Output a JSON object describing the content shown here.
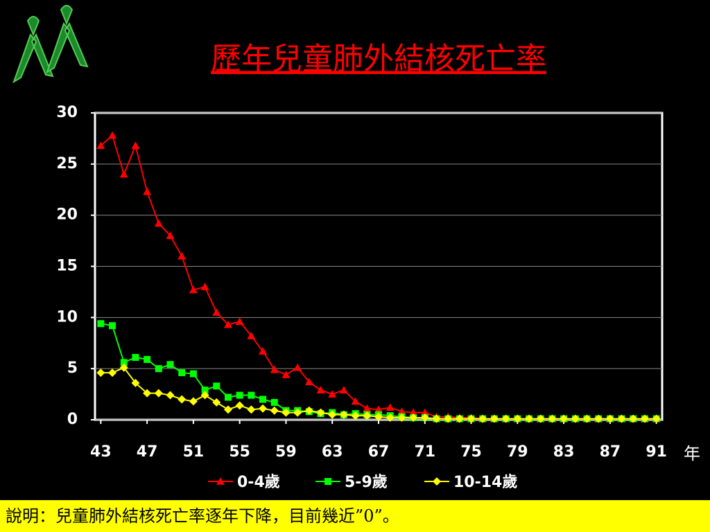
{
  "chart_data": {
    "type": "line",
    "title": "歷年兒童肺外結核死亡率",
    "x_label": "年",
    "note": "說明：兒童肺外結核死亡率逐年下降，目前幾近”0”。",
    "x": [
      43,
      44,
      45,
      46,
      47,
      48,
      49,
      50,
      51,
      52,
      53,
      54,
      55,
      56,
      57,
      58,
      59,
      60,
      61,
      62,
      63,
      64,
      65,
      66,
      67,
      68,
      69,
      70,
      71,
      72,
      73,
      74,
      75,
      76,
      77,
      78,
      79,
      80,
      81,
      82,
      83,
      84,
      85,
      86,
      87,
      88,
      89,
      90,
      91
    ],
    "xlim": [
      42.5,
      91.5
    ],
    "xticks": [
      43,
      47,
      51,
      55,
      59,
      63,
      67,
      71,
      75,
      79,
      83,
      87,
      91
    ],
    "ylim": [
      0,
      30
    ],
    "yticks": [
      0,
      5,
      10,
      15,
      20,
      25,
      30
    ],
    "grid": true,
    "series": [
      {
        "name": "0-4歲",
        "color": "#ff0000",
        "marker": "triangle",
        "values": [
          26.8,
          27.8,
          24,
          26.8,
          22.3,
          19.2,
          18,
          16,
          12.7,
          13,
          10.5,
          9.3,
          9.6,
          8.2,
          6.7,
          4.9,
          4.4,
          5.1,
          3.7,
          2.9,
          2.5,
          2.9,
          1.8,
          1.1,
          1.0,
          1.2,
          0.8,
          0.7,
          0.7,
          0.3,
          0.3,
          0.2,
          0.2,
          0.1,
          0.1,
          0.1,
          0.1,
          0.1,
          0.1,
          0.1,
          0.1,
          0.1,
          0.1,
          0.1,
          0.1,
          0.1,
          0.1,
          0.1,
          0.1
        ]
      },
      {
        "name": "5-9歲",
        "color": "#00ff00",
        "marker": "square",
        "values": [
          9.4,
          9.2,
          5.6,
          6.1,
          5.9,
          5.0,
          5.4,
          4.6,
          4.5,
          2.9,
          3.3,
          2.2,
          2.4,
          2.4,
          2.0,
          1.7,
          0.9,
          0.9,
          0.8,
          0.6,
          0.7,
          0.5,
          0.6,
          0.5,
          0.5,
          0.4,
          0.3,
          0.2,
          0.2,
          0.1,
          0.1,
          0.1,
          0.1,
          0.1,
          0.1,
          0.1,
          0.1,
          0.1,
          0.1,
          0.1,
          0.1,
          0.1,
          0.1,
          0.1,
          0.1,
          0.1,
          0.1,
          0.1,
          0.1
        ]
      },
      {
        "name": "10-14歲",
        "color": "#ffff00",
        "marker": "diamond",
        "values": [
          4.6,
          4.6,
          5.1,
          3.6,
          2.6,
          2.6,
          2.4,
          2.0,
          1.8,
          2.4,
          1.7,
          1.0,
          1.4,
          1.0,
          1.1,
          0.9,
          0.7,
          0.7,
          0.9,
          0.7,
          0.5,
          0.5,
          0.4,
          0.4,
          0.3,
          0.2,
          0.2,
          0.2,
          0.2,
          0.1,
          0.1,
          0.1,
          0.1,
          0.1,
          0.1,
          0.1,
          0.1,
          0.1,
          0.1,
          0.1,
          0.1,
          0.1,
          0.1,
          0.1,
          0.1,
          0.1,
          0.1,
          0.1,
          0.1
        ]
      }
    ]
  }
}
